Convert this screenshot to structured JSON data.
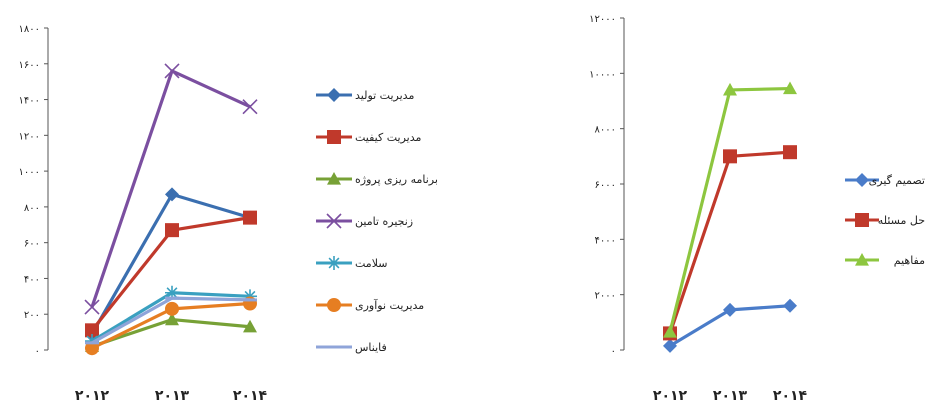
{
  "chart_data": [
    {
      "type": "line",
      "title": "",
      "xlabel": "",
      "ylabel": "",
      "categories": [
        "۲۰۱۲",
        "۲۰۱۳",
        "۲۰۱۴"
      ],
      "ylim": [
        0,
        1800
      ],
      "y_ticks": [
        0,
        200,
        400,
        600,
        800,
        1000,
        1200,
        1400,
        1600,
        1800
      ],
      "y_tick_labels": [
        "۰",
        "۲۰۰",
        "۴۰۰",
        "۶۰۰",
        "۸۰۰",
        "۱۰۰۰",
        "۱۲۰۰",
        "۱۴۰۰",
        "۱۶۰۰",
        "۱۸۰۰"
      ],
      "grid": false,
      "legend_position": "right",
      "series": [
        {
          "name": "مدیریت تولید",
          "values": [
            90,
            870,
            740
          ],
          "color": "#3b6fb0",
          "marker": "diamond"
        },
        {
          "name": "مدیریت کیفیت",
          "values": [
            110,
            670,
            740
          ],
          "color": "#c0392b",
          "marker": "square"
        },
        {
          "name": "برنامه ریزی پروژه",
          "values": [
            20,
            170,
            130
          ],
          "color": "#77a136",
          "marker": "triangle"
        },
        {
          "name": "زنجیره تامین",
          "values": [
            240,
            1560,
            1360
          ],
          "color": "#7b4fa0",
          "marker": "x"
        },
        {
          "name": "سلامت",
          "values": [
            50,
            320,
            300
          ],
          "color": "#3aa0c0",
          "marker": "star"
        },
        {
          "name": "مدیریت نوآوری",
          "values": [
            10,
            230,
            260
          ],
          "color": "#e67e22",
          "marker": "circle"
        },
        {
          "name": "فایناس",
          "values": [
            40,
            290,
            280
          ],
          "color": "#8fa4d9",
          "marker": "dash"
        }
      ]
    },
    {
      "type": "line",
      "title": "",
      "xlabel": "",
      "ylabel": "",
      "categories": [
        "۲۰۱۲",
        "۲۰۱۳",
        "۲۰۱۴"
      ],
      "ylim": [
        0,
        12000
      ],
      "y_ticks": [
        0,
        2000,
        4000,
        6000,
        8000,
        10000,
        12000
      ],
      "y_tick_labels": [
        "۰",
        "۲۰۰۰",
        "۴۰۰۰",
        "۶۰۰۰",
        "۸۰۰۰",
        "۱۰۰۰۰",
        "۱۲۰۰۰"
      ],
      "grid": false,
      "legend_position": "left",
      "series": [
        {
          "name": "تصمیم گیری",
          "values": [
            150,
            1450,
            1600
          ],
          "color": "#4a7cc9",
          "marker": "diamond"
        },
        {
          "name": "حل مسئله",
          "values": [
            600,
            7000,
            7150
          ],
          "color": "#c0392b",
          "marker": "square"
        },
        {
          "name": "مفاهیم",
          "values": [
            650,
            9400,
            9450
          ],
          "color": "#8dc63f",
          "marker": "triangle"
        }
      ]
    }
  ]
}
